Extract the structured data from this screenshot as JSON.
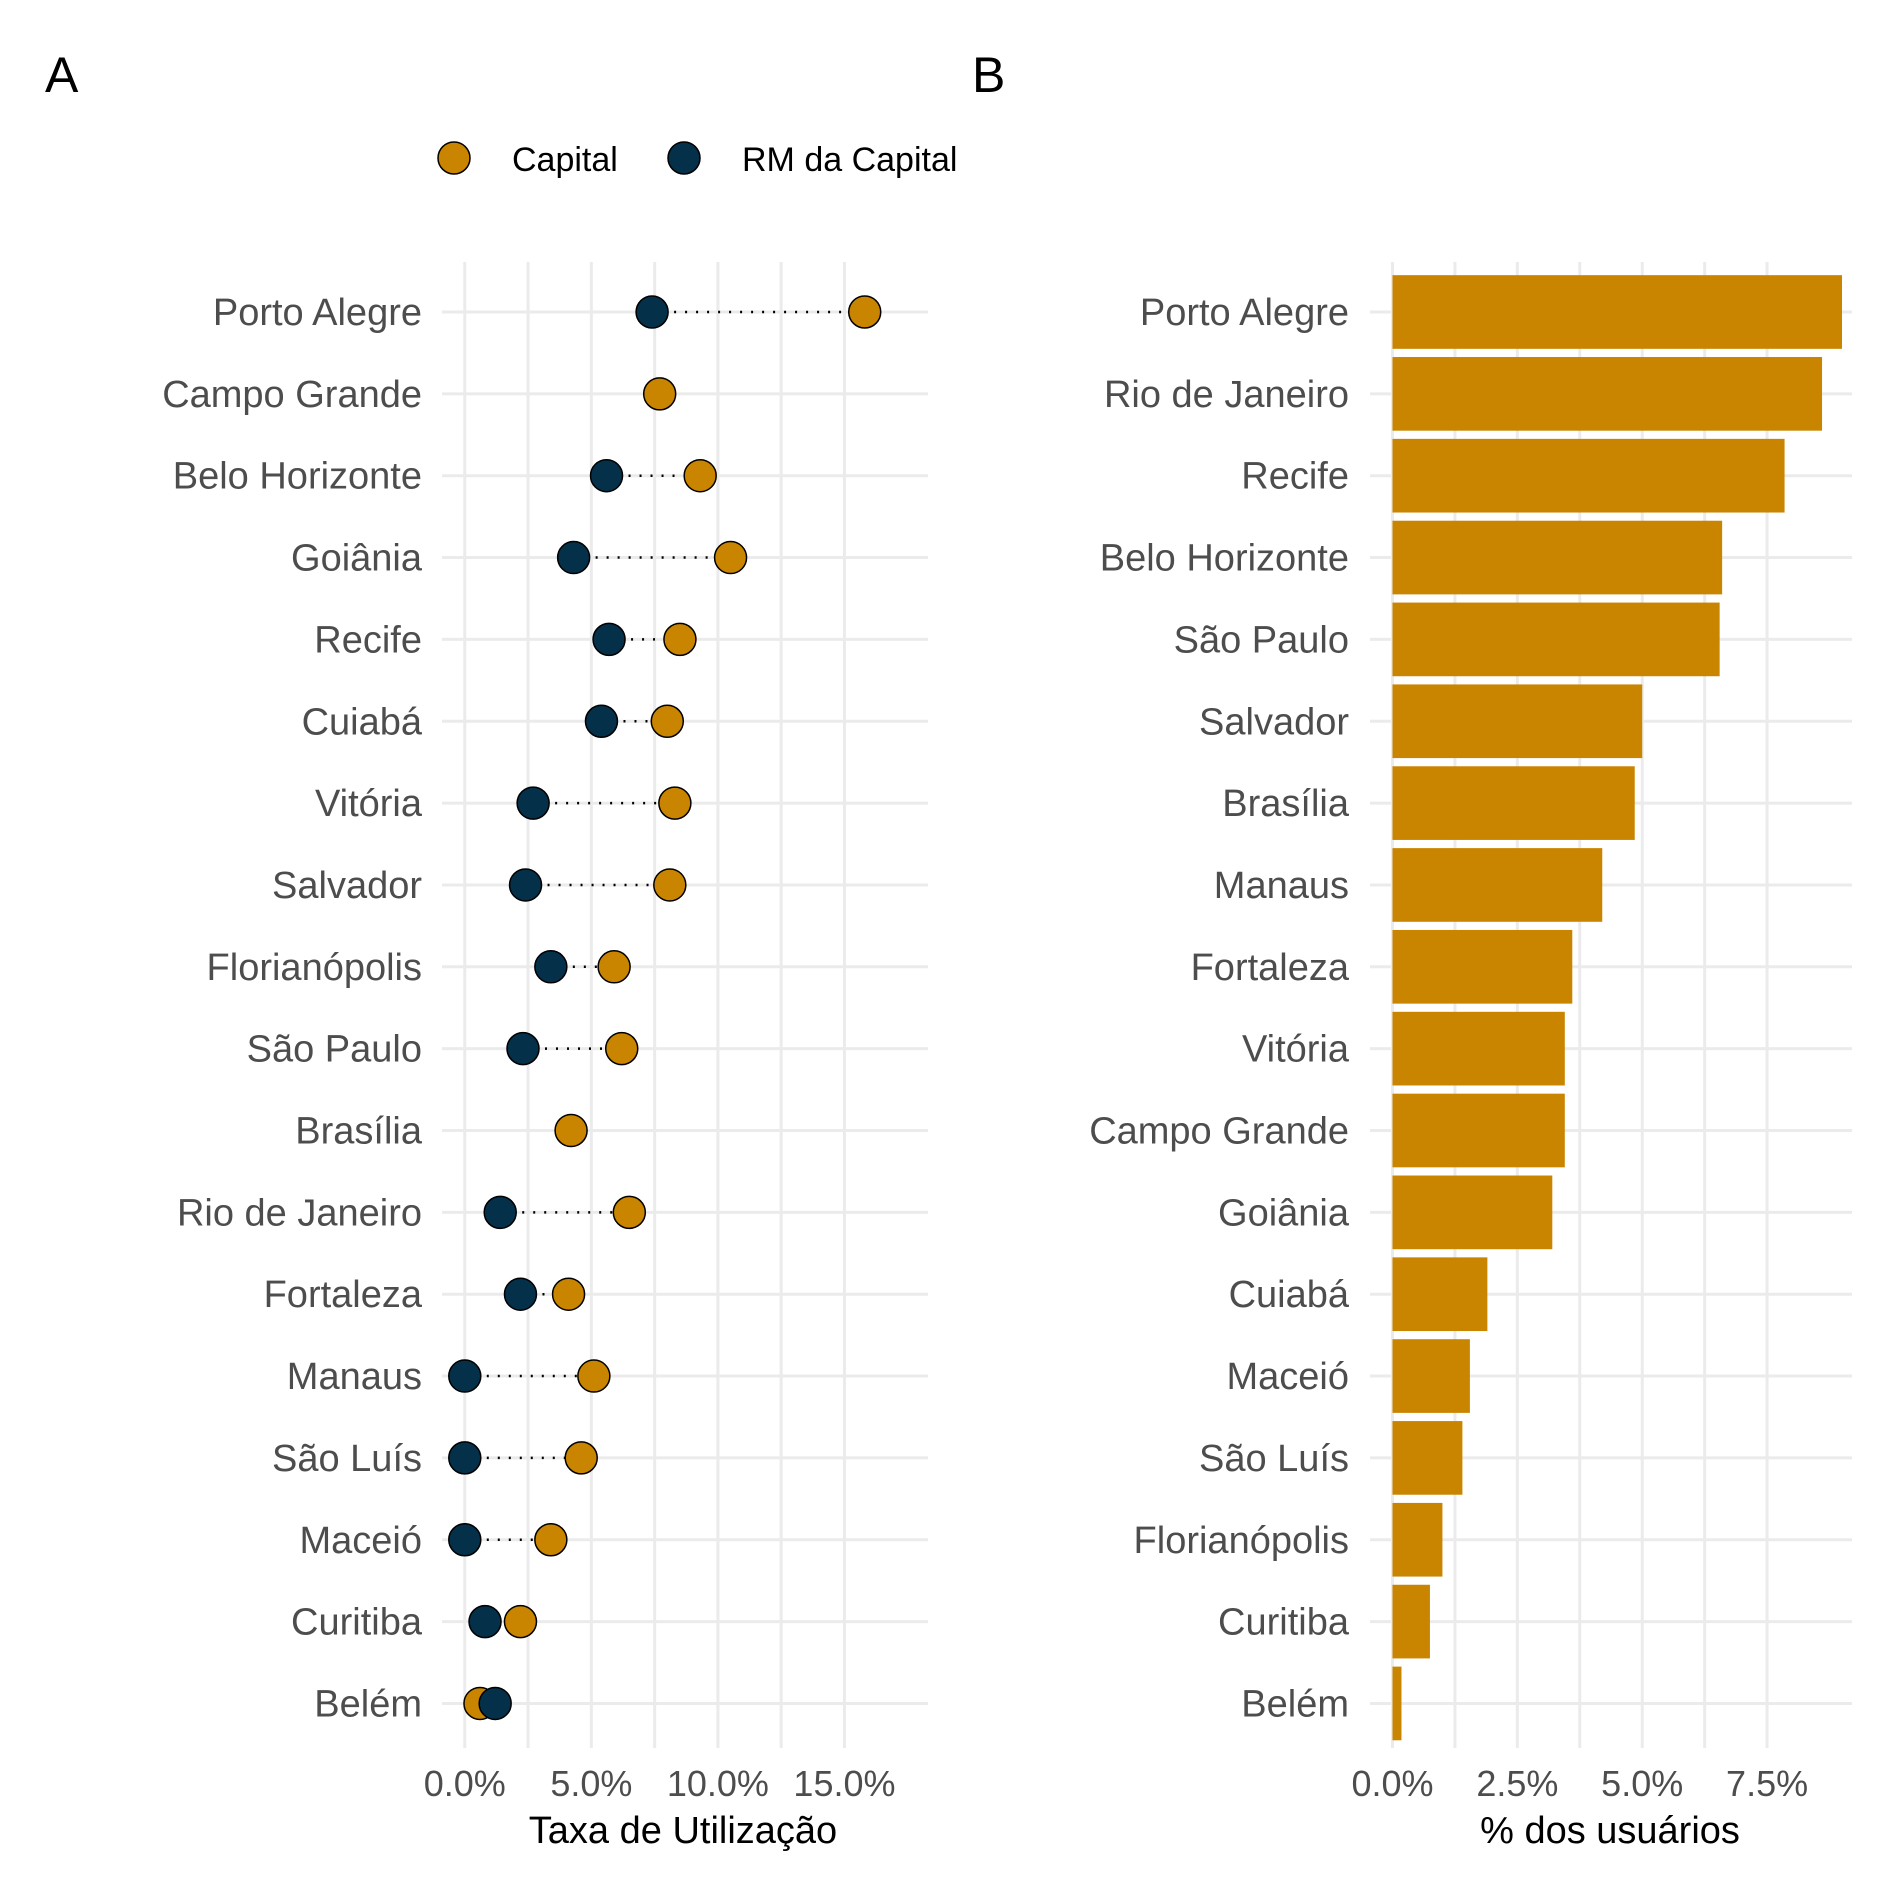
{
  "colors": {
    "capital": "#C98500",
    "rm": "#04304A",
    "grid": "#EBEBEB",
    "text": "#4D4D4D"
  },
  "chart_data": [
    {
      "panel": "A",
      "type": "scatter",
      "xlabel": "Taxa de Utilização",
      "ylabel": "",
      "xlim": [
        -0.9,
        18.3
      ],
      "xticks": [
        0,
        5,
        10,
        15
      ],
      "xtick_labels": [
        "0.0%",
        "5.0%",
        "10.0%",
        "15.0%"
      ],
      "grid": true,
      "legend": {
        "position": "top",
        "entries": [
          "Capital",
          "RM da Capital"
        ]
      },
      "categories": [
        "Porto Alegre",
        "Campo Grande",
        "Belo Horizonte",
        "Goiânia",
        "Recife",
        "Cuiabá",
        "Vitória",
        "Salvador",
        "Florianópolis",
        "São Paulo",
        "Brasília",
        "Rio de Janeiro",
        "Fortaleza",
        "Manaus",
        "São Luís",
        "Maceió",
        "Curitiba",
        "Belém"
      ],
      "series": [
        {
          "name": "Capital",
          "color": "#C98500",
          "values": [
            15.8,
            7.7,
            9.3,
            10.5,
            8.5,
            8.0,
            8.3,
            8.1,
            5.9,
            6.2,
            4.2,
            6.5,
            4.1,
            5.1,
            4.6,
            3.4,
            2.2,
            0.6
          ]
        },
        {
          "name": "RM da Capital",
          "color": "#04304A",
          "values": [
            7.4,
            null,
            5.6,
            4.3,
            5.7,
            5.4,
            2.7,
            2.4,
            3.4,
            2.3,
            null,
            1.4,
            2.2,
            0.0,
            0.0,
            0.0,
            0.8,
            1.2
          ]
        }
      ]
    },
    {
      "panel": "B",
      "type": "bar",
      "orientation": "horizontal",
      "xlabel": "% dos usuários",
      "ylabel": "",
      "xlim": [
        -0.45,
        9.2
      ],
      "xticks": [
        0,
        2.5,
        5,
        7.5
      ],
      "xtick_labels": [
        "0.0%",
        "2.5%",
        "5.0%",
        "7.5%"
      ],
      "grid": true,
      "color": "#C98500",
      "categories": [
        "Porto Alegre",
        "Rio de Janeiro",
        "Recife",
        "Belo Horizonte",
        "São Paulo",
        "Salvador",
        "Brasília",
        "Manaus",
        "Fortaleza",
        "Vitória",
        "Campo Grande",
        "Goiânia",
        "Cuiabá",
        "Maceió",
        "São Luís",
        "Florianópolis",
        "Curitiba",
        "Belém"
      ],
      "values": [
        9.0,
        8.6,
        7.85,
        6.6,
        6.55,
        5.0,
        4.85,
        4.2,
        3.6,
        3.45,
        3.45,
        3.2,
        1.9,
        1.55,
        1.4,
        1.0,
        0.75,
        0.18
      ]
    }
  ]
}
